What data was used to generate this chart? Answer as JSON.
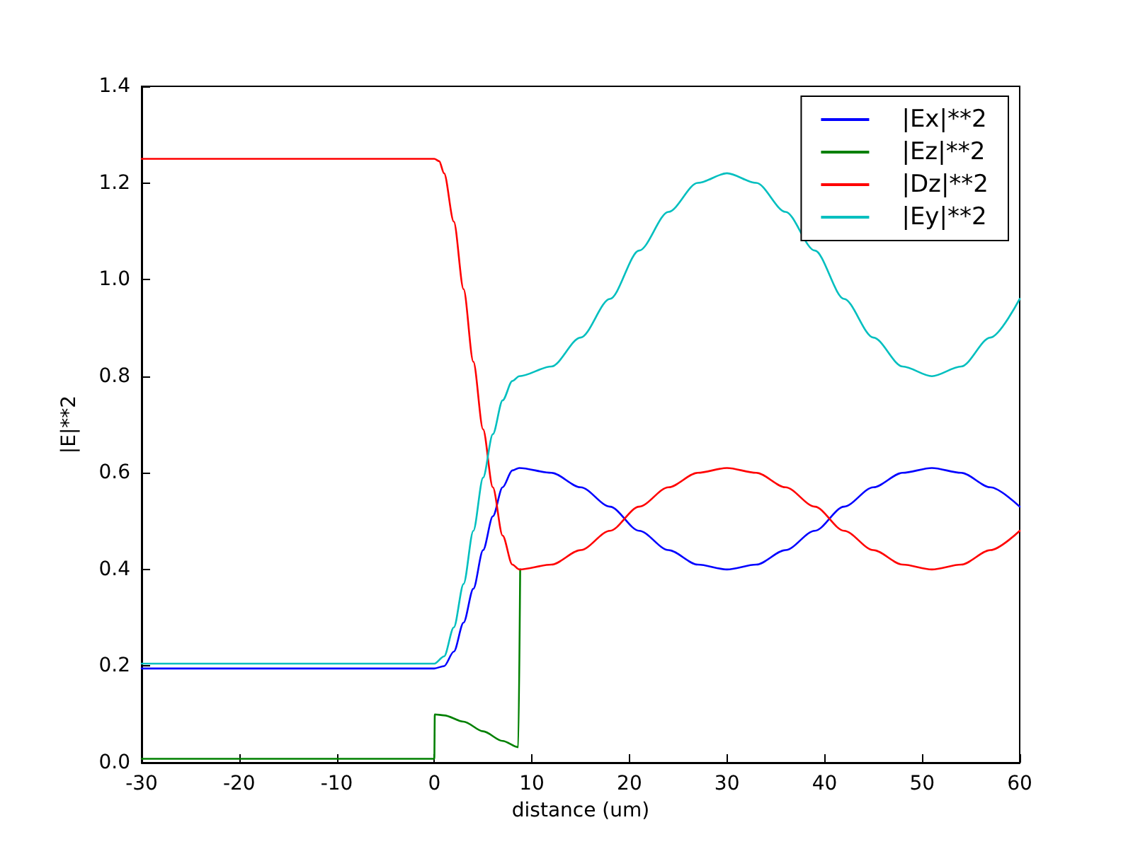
{
  "chart_data": {
    "type": "line",
    "xlabel": "distance (um)",
    "ylabel": "|E|**2",
    "xlim": [
      -30,
      60
    ],
    "xticks": [
      -30,
      -20,
      -10,
      0,
      10,
      20,
      30,
      40,
      50,
      60
    ],
    "ylim": [
      0,
      1.4
    ],
    "yticks": [
      {
        "value": 0,
        "label": "0.0"
      },
      {
        "value": 0.2,
        "label": "0.2"
      },
      {
        "value": 0.4,
        "label": "0.4"
      },
      {
        "value": 0.6,
        "label": "0.6"
      },
      {
        "value": 0.8,
        "label": "0.8"
      },
      {
        "value": 1.0,
        "label": "1.0"
      },
      {
        "value": 1.2,
        "label": "1.2"
      },
      {
        "value": 1.4,
        "label": "1.4"
      }
    ],
    "grid": false,
    "legend": "top right",
    "marker": "none",
    "line_style": "solid",
    "series": [
      {
        "name": "|Ex|**2",
        "color": "#0000ff",
        "x": [
          -30,
          -10,
          0,
          1,
          2,
          3,
          4,
          5,
          6,
          7,
          8,
          8.7,
          12,
          15,
          18,
          21,
          24,
          27,
          30,
          33,
          36,
          39,
          42,
          45,
          48,
          51,
          54,
          57,
          60
        ],
        "values": [
          0.195,
          0.195,
          0.195,
          0.2,
          0.23,
          0.29,
          0.36,
          0.44,
          0.51,
          0.57,
          0.605,
          0.61,
          0.6,
          0.57,
          0.53,
          0.48,
          0.44,
          0.41,
          0.4,
          0.41,
          0.44,
          0.48,
          0.53,
          0.57,
          0.6,
          0.61,
          0.6,
          0.57,
          0.53
        ]
      },
      {
        "name": "|Ez|**2",
        "color": "#008000",
        "x": [
          -30,
          -10,
          0,
          0.05,
          1,
          3,
          5,
          7,
          8.6,
          8.8
        ],
        "values": [
          0.008,
          0.008,
          0.008,
          0.1,
          0.098,
          0.085,
          0.065,
          0.045,
          0.032,
          0.4
        ]
      },
      {
        "name": "|Dz|**2",
        "color": "#ff0000",
        "x": [
          -30,
          -10,
          0,
          0.5,
          1,
          2,
          3,
          4,
          5,
          6,
          7,
          8,
          8.7,
          12,
          15,
          18,
          21,
          24,
          27,
          30,
          33,
          36,
          39,
          42,
          45,
          48,
          51,
          54,
          57,
          60
        ],
        "values": [
          1.25,
          1.25,
          1.25,
          1.245,
          1.22,
          1.12,
          0.98,
          0.83,
          0.69,
          0.57,
          0.47,
          0.41,
          0.4,
          0.41,
          0.44,
          0.48,
          0.53,
          0.57,
          0.6,
          0.61,
          0.6,
          0.57,
          0.53,
          0.48,
          0.44,
          0.41,
          0.4,
          0.41,
          0.44,
          0.48
        ]
      },
      {
        "name": "|Ey|**2",
        "color": "#00bfbf",
        "x": [
          -30,
          -10,
          0,
          1,
          2,
          3,
          4,
          5,
          6,
          7,
          8,
          8.7,
          12,
          15,
          18,
          21,
          24,
          27,
          30,
          33,
          36,
          39,
          42,
          45,
          48,
          51,
          54,
          57,
          60
        ],
        "values": [
          0.205,
          0.205,
          0.205,
          0.22,
          0.28,
          0.37,
          0.48,
          0.59,
          0.68,
          0.75,
          0.79,
          0.8,
          0.82,
          0.88,
          0.96,
          1.06,
          1.14,
          1.2,
          1.22,
          1.2,
          1.14,
          1.06,
          0.96,
          0.88,
          0.82,
          0.8,
          0.82,
          0.88,
          0.96
        ]
      }
    ]
  }
}
